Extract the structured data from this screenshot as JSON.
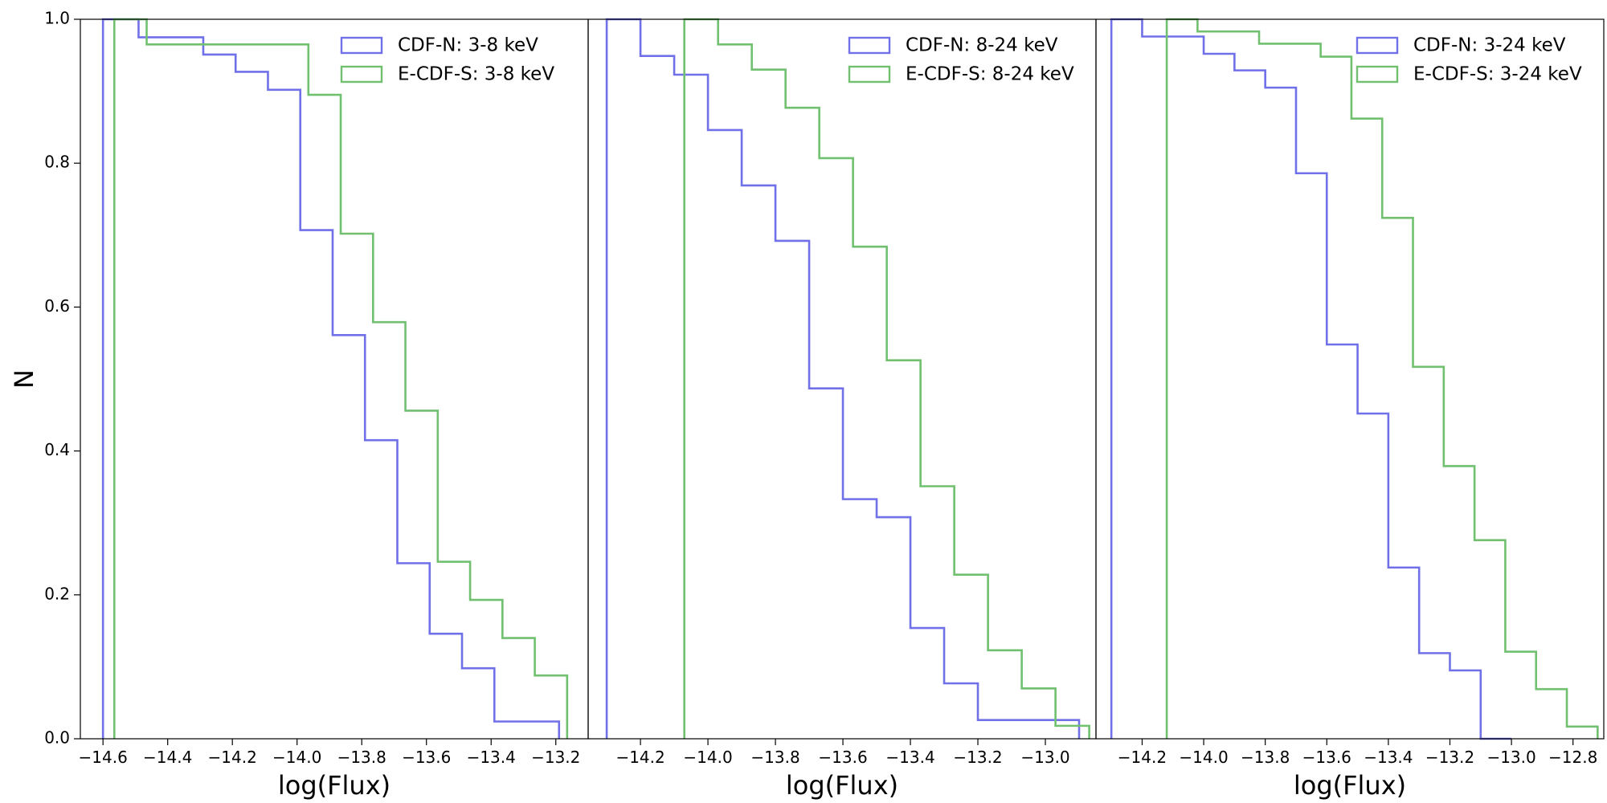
{
  "chart_data": {
    "type": "step",
    "ylabel": "N",
    "ylim": [
      0,
      1
    ],
    "yticks": [
      0.0,
      0.2,
      0.4,
      0.6,
      0.8,
      1.0
    ],
    "yticklabels": [
      "0.0",
      "0.2",
      "0.4",
      "0.6",
      "0.8",
      "1.0"
    ],
    "legend_position": "top-right",
    "grid": false,
    "colors": {
      "cdfn": "#7070e8",
      "ecdfs": "#70c070"
    },
    "panels": [
      {
        "xlabel": "log(Flux)",
        "xlim": [
          -14.67,
          -13.1
        ],
        "xticks": [
          -14.6,
          -14.4,
          -14.2,
          -14.0,
          -13.8,
          -13.6,
          -13.4,
          -13.2
        ],
        "xticklabels": [
          "−14.6",
          "−14.4",
          "−14.2",
          "−14.0",
          "−13.8",
          "−13.6",
          "−13.4",
          "−13.2"
        ],
        "series": [
          {
            "name": "CDF-N: 3-8 keV",
            "color_key": "cdfn",
            "edges": [
              -14.6,
              -14.49,
              -14.29,
              -14.19,
              -14.09,
              -13.99,
              -13.89,
              -13.79,
              -13.69,
              -13.59,
              -13.49,
              -13.39,
              -13.19
            ],
            "values": [
              1.0,
              0.975,
              0.951,
              0.927,
              0.902,
              0.707,
              0.561,
              0.415,
              0.244,
              0.146,
              0.098,
              0.024
            ]
          },
          {
            "name": "E-CDF-S: 3-8 keV",
            "color_key": "ecdfs",
            "edges": [
              -14.565,
              -14.465,
              -13.965,
              -13.865,
              -13.765,
              -13.665,
              -13.565,
              -13.465,
              -13.365,
              -13.265,
              -13.165
            ],
            "values": [
              1.0,
              0.965,
              0.895,
              0.702,
              0.579,
              0.456,
              0.246,
              0.193,
              0.14,
              0.088
            ]
          }
        ]
      },
      {
        "xlabel": "log(Flux)",
        "xlim": [
          -14.355,
          -12.85
        ],
        "xticks": [
          -14.2,
          -14.0,
          -13.8,
          -13.6,
          -13.4,
          -13.2,
          -13.0
        ],
        "xticklabels": [
          "−14.2",
          "−14.0",
          "−13.8",
          "−13.6",
          "−13.4",
          "−13.2",
          "−13.0"
        ],
        "series": [
          {
            "name": "CDF-N: 8-24 keV",
            "color_key": "cdfn",
            "edges": [
              -14.3,
              -14.2,
              -14.1,
              -14.0,
              -13.9,
              -13.8,
              -13.7,
              -13.6,
              -13.5,
              -13.4,
              -13.3,
              -13.2,
              -12.9
            ],
            "values": [
              1.0,
              0.949,
              0.923,
              0.846,
              0.769,
              0.692,
              0.487,
              0.333,
              0.308,
              0.154,
              0.077,
              0.026
            ]
          },
          {
            "name": "E-CDF-S: 8-24 keV",
            "color_key": "ecdfs",
            "edges": [
              -14.07,
              -13.97,
              -13.87,
              -13.77,
              -13.67,
              -13.57,
              -13.47,
              -13.37,
              -13.27,
              -13.17,
              -13.07,
              -12.97,
              -12.87
            ],
            "values": [
              1.0,
              0.965,
              0.93,
              0.877,
              0.807,
              0.684,
              0.526,
              0.351,
              0.228,
              0.123,
              0.07,
              0.018
            ]
          }
        ]
      },
      {
        "xlabel": "log(Flux)",
        "xlim": [
          -14.35,
          -12.7
        ],
        "xticks": [
          -14.2,
          -14.0,
          -13.8,
          -13.6,
          -13.4,
          -13.2,
          -13.0,
          -12.8
        ],
        "xticklabels": [
          "−14.2",
          "−14.0",
          "−13.8",
          "−13.6",
          "−13.4",
          "−13.2",
          "−13.0",
          "−12.8"
        ],
        "series": [
          {
            "name": "CDF-N: 3-24 keV",
            "color_key": "cdfn",
            "edges": [
              -14.3,
              -14.2,
              -14.0,
              -13.9,
              -13.8,
              -13.7,
              -13.6,
              -13.5,
              -13.4,
              -13.3,
              -13.2,
              -13.1,
              -13.0
            ],
            "values": [
              1.0,
              0.976,
              0.952,
              0.929,
              0.905,
              0.786,
              0.548,
              0.452,
              0.238,
              0.119,
              0.095,
              0.0
            ]
          },
          {
            "name": "E-CDF-S: 3-24 keV",
            "color_key": "ecdfs",
            "edges": [
              -14.12,
              -14.02,
              -13.82,
              -13.62,
              -13.52,
              -13.42,
              -13.32,
              -13.22,
              -13.12,
              -13.02,
              -12.92,
              -12.82,
              -12.72
            ],
            "values": [
              1.0,
              0.983,
              0.966,
              0.948,
              0.862,
              0.724,
              0.517,
              0.379,
              0.276,
              0.121,
              0.069,
              0.017
            ]
          }
        ]
      }
    ]
  }
}
